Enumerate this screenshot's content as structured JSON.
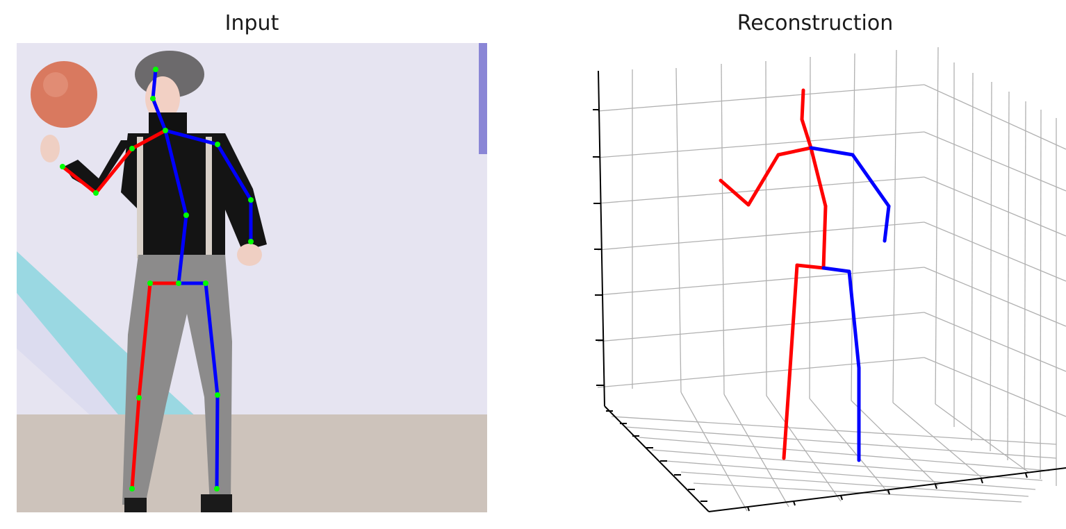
{
  "panels": {
    "input_title": "Input",
    "reconstruction_title": "Reconstruction"
  },
  "colors": {
    "right_side": "#ff0000",
    "left_side": "#0000ff",
    "joint": "#00ff00",
    "grid": "#b0b0b0",
    "axis": "#000000"
  }
}
